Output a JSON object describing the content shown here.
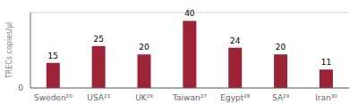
{
  "chart_data": {
    "type": "bar",
    "categories": [
      "Sweden²⁰",
      "USA²³",
      "UK²⁶",
      "Taiwan²⁷",
      "Egypt²⁸",
      "SA²⁹",
      "Iran³⁰"
    ],
    "values": [
      15,
      25,
      20,
      40,
      24,
      20,
      11
    ],
    "color": "#9b2335",
    "ylabel": "TRECs copies/μl",
    "ylim": [
      0,
      45
    ],
    "yticks": [
      0
    ],
    "grid": true,
    "data_labels": true
  }
}
